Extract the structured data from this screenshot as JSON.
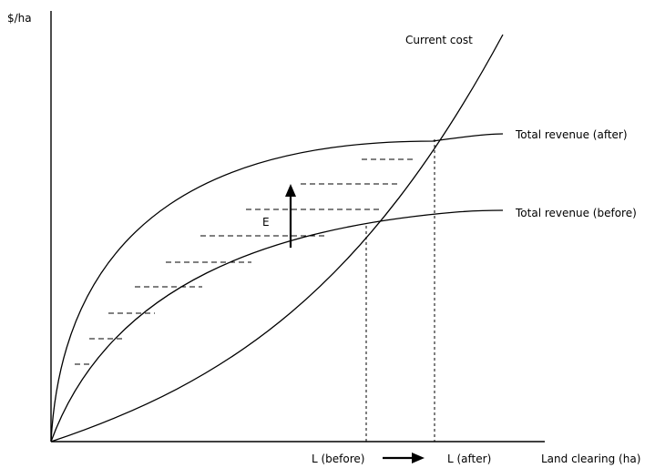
{
  "labels": {
    "y_axis": "$/ha",
    "x_axis": "Land clearing (ha)",
    "current_cost": "Current cost",
    "revenue_after": "Total revenue (after)",
    "revenue_before": "Total revenue (before)",
    "effect": "E",
    "l_before": "L (before)",
    "l_after": "L (after)"
  },
  "colors": {
    "ink": "#000000",
    "background": "#ffffff"
  }
}
